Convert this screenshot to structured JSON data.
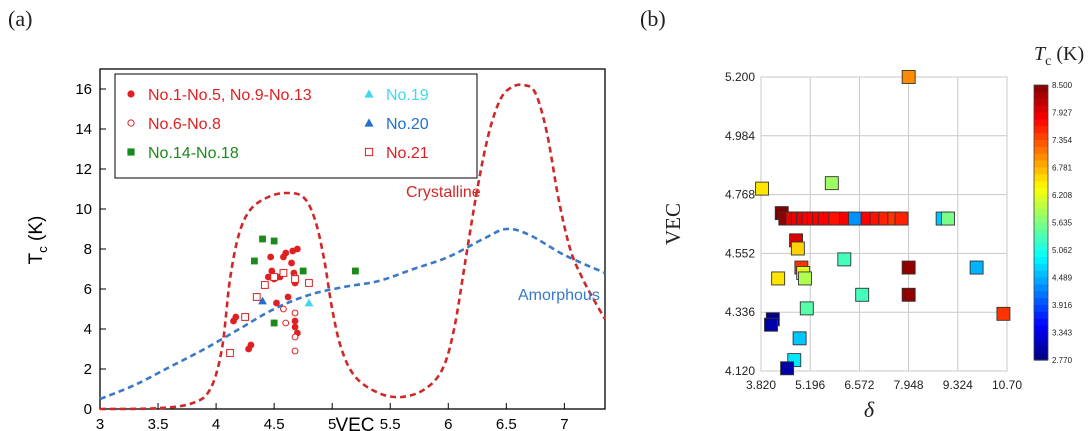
{
  "chart_data": [
    {
      "panel_label": "(a)",
      "type": "scatter",
      "xlabel": "VEC",
      "ylabel": "T",
      "ylabel_sub": "c",
      "ylabel_unit": " (K)",
      "xlim": [
        3,
        7.35
      ],
      "ylim": [
        0,
        17
      ],
      "x_ticks": [
        "3",
        "3.5",
        "4",
        "4.5",
        "5",
        "5.5",
        "6",
        "6.5",
        "7"
      ],
      "x_tick_values": [
        3,
        3.5,
        4,
        4.5,
        5,
        5.5,
        6,
        6.5,
        7
      ],
      "y_ticks": [
        "0",
        "2",
        "4",
        "6",
        "8",
        "10",
        "12",
        "14",
        "16"
      ],
      "y_tick_values": [
        0,
        2,
        4,
        6,
        8,
        10,
        12,
        14,
        16
      ],
      "legend": [
        {
          "label": "No.1-No.5, No.9-No.13",
          "marker": "filled-circle",
          "color": "#e02020"
        },
        {
          "label": "No.19",
          "marker": "filled-triangle",
          "color": "#40d8f0"
        },
        {
          "label": "No.6-No.8",
          "marker": "open-circle",
          "color": "#e02020"
        },
        {
          "label": "No.20",
          "marker": "filled-triangle",
          "color": "#2070d0"
        },
        {
          "label": "No.14-No.18",
          "marker": "filled-square",
          "color": "#1a8a1a"
        },
        {
          "label": "No.21",
          "marker": "open-square",
          "color": "#e02020"
        }
      ],
      "annotations": [
        {
          "text": "Crystalline",
          "color": "#d02828"
        },
        {
          "text": "Amorphous",
          "color": "#3a78c8"
        }
      ],
      "series": [
        {
          "label": "No.1-No.5, No.9-No.13",
          "marker": "filled-circle",
          "color": "#e02020",
          "points": [
            [
              4.15,
              4.4
            ],
            [
              4.17,
              4.6
            ],
            [
              4.28,
              3.0
            ],
            [
              4.3,
              3.2
            ],
            [
              4.45,
              6.6
            ],
            [
              4.47,
              7.6
            ],
            [
              4.48,
              6.9
            ],
            [
              4.5,
              6.5
            ],
            [
              4.52,
              5.3
            ],
            [
              4.55,
              6.6
            ],
            [
              4.58,
              7.6
            ],
            [
              4.6,
              7.8
            ],
            [
              4.62,
              5.6
            ],
            [
              4.65,
              7.3
            ],
            [
              4.66,
              7.9
            ],
            [
              4.67,
              6.8
            ],
            [
              4.68,
              6.3
            ],
            [
              4.68,
              4.1
            ],
            [
              4.68,
              4.4
            ],
            [
              4.7,
              8.0
            ],
            [
              4.7,
              3.8
            ]
          ]
        },
        {
          "label": "No.6-No.8",
          "marker": "open-circle",
          "color": "#e02020",
          "points": [
            [
              4.58,
              5.0
            ],
            [
              4.6,
              4.3
            ],
            [
              4.68,
              6.6
            ],
            [
              4.68,
              4.8
            ],
            [
              4.68,
              3.6
            ],
            [
              4.68,
              2.9
            ]
          ]
        },
        {
          "label": "No.14-No.18",
          "marker": "filled-square",
          "color": "#1a8a1a",
          "points": [
            [
              4.33,
              7.4
            ],
            [
              4.4,
              8.5
            ],
            [
              4.5,
              8.4
            ],
            [
              4.5,
              4.3
            ],
            [
              4.75,
              6.9
            ],
            [
              5.2,
              6.9
            ]
          ]
        },
        {
          "label": "No.19",
          "marker": "filled-triangle",
          "color": "#40d8f0",
          "points": [
            [
              4.8,
              5.3
            ]
          ]
        },
        {
          "label": "No.20",
          "marker": "filled-triangle",
          "color": "#2070d0",
          "points": [
            [
              4.4,
              5.4
            ]
          ]
        },
        {
          "label": "No.21",
          "marker": "open-square",
          "color": "#e02020",
          "points": [
            [
              4.12,
              2.8
            ],
            [
              4.25,
              4.6
            ],
            [
              4.35,
              5.6
            ],
            [
              4.42,
              6.2
            ],
            [
              4.5,
              6.6
            ],
            [
              4.58,
              6.8
            ],
            [
              4.68,
              6.5
            ],
            [
              4.8,
              6.3
            ]
          ]
        }
      ],
      "curves": [
        {
          "label": "Crystalline",
          "color": "#d02828",
          "points": [
            [
              3.0,
              0.0
            ],
            [
              3.5,
              0.04
            ],
            [
              3.8,
              0.3
            ],
            [
              3.95,
              1.0
            ],
            [
              4.05,
              3.0
            ],
            [
              4.12,
              6.5
            ],
            [
              4.2,
              8.8
            ],
            [
              4.3,
              10.0
            ],
            [
              4.45,
              10.6
            ],
            [
              4.6,
              10.8
            ],
            [
              4.75,
              10.6
            ],
            [
              4.85,
              9.5
            ],
            [
              4.93,
              7.5
            ],
            [
              5.0,
              5.0
            ],
            [
              5.08,
              3.0
            ],
            [
              5.2,
              1.6
            ],
            [
              5.4,
              0.8
            ],
            [
              5.6,
              0.6
            ],
            [
              5.8,
              1.0
            ],
            [
              5.95,
              2.0
            ],
            [
              6.05,
              4.0
            ],
            [
              6.15,
              7.5
            ],
            [
              6.25,
              11.0
            ],
            [
              6.35,
              13.8
            ],
            [
              6.45,
              15.5
            ],
            [
              6.55,
              16.1
            ],
            [
              6.65,
              16.2
            ],
            [
              6.75,
              15.8
            ],
            [
              6.85,
              13.8
            ],
            [
              6.95,
              10.5
            ],
            [
              7.05,
              8.0
            ],
            [
              7.15,
              6.6
            ],
            [
              7.25,
              5.5
            ],
            [
              7.35,
              4.5
            ]
          ]
        },
        {
          "label": "Amorphous",
          "color": "#3a78c8",
          "points": [
            [
              3.0,
              0.5
            ],
            [
              3.3,
              1.2
            ],
            [
              3.6,
              2.1
            ],
            [
              3.9,
              3.0
            ],
            [
              4.2,
              4.0
            ],
            [
              4.5,
              5.0
            ],
            [
              4.8,
              5.7
            ],
            [
              5.1,
              6.1
            ],
            [
              5.4,
              6.4
            ],
            [
              5.7,
              7.0
            ],
            [
              6.0,
              7.6
            ],
            [
              6.3,
              8.5
            ],
            [
              6.5,
              9.0
            ],
            [
              6.7,
              8.7
            ],
            [
              7.0,
              7.7
            ],
            [
              7.35,
              6.8
            ]
          ]
        }
      ]
    },
    {
      "panel_label": "(b)",
      "type": "scatter",
      "xlabel": "δ",
      "ylabel": "VEC",
      "xlim": [
        3.82,
        10.7
      ],
      "ylim": [
        4.12,
        5.2
      ],
      "x_ticks": [
        "3.820",
        "5.196",
        "6.572",
        "7.948",
        "9.324",
        "10.70"
      ],
      "x_tick_values": [
        3.82,
        5.196,
        6.572,
        7.948,
        9.324,
        10.7
      ],
      "y_ticks": [
        "4.120",
        "4.336",
        "4.552",
        "4.768",
        "4.984",
        "5.200"
      ],
      "y_tick_values": [
        4.12,
        4.336,
        4.552,
        4.768,
        4.984,
        5.2
      ],
      "colorbar": {
        "title": "T",
        "title_sub": "c",
        "title_unit": " (K)",
        "ticks": [
          "8.500",
          "7.927",
          "7.354",
          "6.781",
          "6.208",
          "5.635",
          "5.062",
          "4.489",
          "3.916",
          "3.343",
          "2.770"
        ],
        "tick_values": [
          8.5,
          7.927,
          7.354,
          6.781,
          6.208,
          5.635,
          5.062,
          4.489,
          3.916,
          3.343,
          2.77
        ],
        "range": [
          2.77,
          8.5
        ]
      },
      "points": [
        {
          "x": 7.95,
          "y": 5.2,
          "tc": 7.0
        },
        {
          "x": 3.85,
          "y": 4.79,
          "tc": 6.5
        },
        {
          "x": 5.8,
          "y": 4.81,
          "tc": 5.8
        },
        {
          "x": 4.4,
          "y": 4.7,
          "tc": 8.5
        },
        {
          "x": 4.5,
          "y": 4.68,
          "tc": 8.4
        },
        {
          "x": 4.7,
          "y": 4.68,
          "tc": 7.9
        },
        {
          "x": 4.85,
          "y": 4.68,
          "tc": 7.9
        },
        {
          "x": 5.0,
          "y": 4.68,
          "tc": 7.9
        },
        {
          "x": 5.15,
          "y": 4.68,
          "tc": 7.8
        },
        {
          "x": 5.3,
          "y": 4.68,
          "tc": 7.8
        },
        {
          "x": 5.45,
          "y": 4.68,
          "tc": 7.8
        },
        {
          "x": 5.6,
          "y": 4.68,
          "tc": 7.8
        },
        {
          "x": 5.75,
          "y": 4.68,
          "tc": 7.8
        },
        {
          "x": 5.9,
          "y": 4.68,
          "tc": 7.7
        },
        {
          "x": 6.2,
          "y": 4.68,
          "tc": 7.8
        },
        {
          "x": 6.45,
          "y": 4.68,
          "tc": 4.3
        },
        {
          "x": 6.8,
          "y": 4.68,
          "tc": 7.8
        },
        {
          "x": 7.05,
          "y": 4.68,
          "tc": 7.7
        },
        {
          "x": 7.3,
          "y": 4.68,
          "tc": 7.6
        },
        {
          "x": 7.55,
          "y": 4.68,
          "tc": 7.5
        },
        {
          "x": 7.75,
          "y": 4.68,
          "tc": 7.6
        },
        {
          "x": 8.9,
          "y": 4.68,
          "tc": 4.6
        },
        {
          "x": 9.05,
          "y": 4.68,
          "tc": 5.6
        },
        {
          "x": 4.8,
          "y": 4.6,
          "tc": 8.0
        },
        {
          "x": 4.85,
          "y": 4.57,
          "tc": 6.6
        },
        {
          "x": 4.95,
          "y": 4.5,
          "tc": 7.5
        },
        {
          "x": 5.0,
          "y": 4.48,
          "tc": 6.2
        },
        {
          "x": 5.05,
          "y": 4.46,
          "tc": 5.9
        },
        {
          "x": 4.3,
          "y": 4.46,
          "tc": 6.5
        },
        {
          "x": 6.15,
          "y": 4.53,
          "tc": 5.3
        },
        {
          "x": 7.95,
          "y": 4.5,
          "tc": 8.4
        },
        {
          "x": 9.85,
          "y": 4.5,
          "tc": 4.5
        },
        {
          "x": 6.65,
          "y": 4.4,
          "tc": 5.3
        },
        {
          "x": 7.95,
          "y": 4.4,
          "tc": 8.4
        },
        {
          "x": 10.6,
          "y": 4.33,
          "tc": 7.5
        },
        {
          "x": 5.1,
          "y": 4.35,
          "tc": 5.4
        },
        {
          "x": 4.15,
          "y": 4.31,
          "tc": 2.8
        },
        {
          "x": 4.1,
          "y": 4.29,
          "tc": 3.0
        },
        {
          "x": 4.9,
          "y": 4.24,
          "tc": 4.6
        },
        {
          "x": 4.75,
          "y": 4.16,
          "tc": 4.8
        },
        {
          "x": 4.55,
          "y": 4.13,
          "tc": 3.0
        }
      ]
    }
  ]
}
